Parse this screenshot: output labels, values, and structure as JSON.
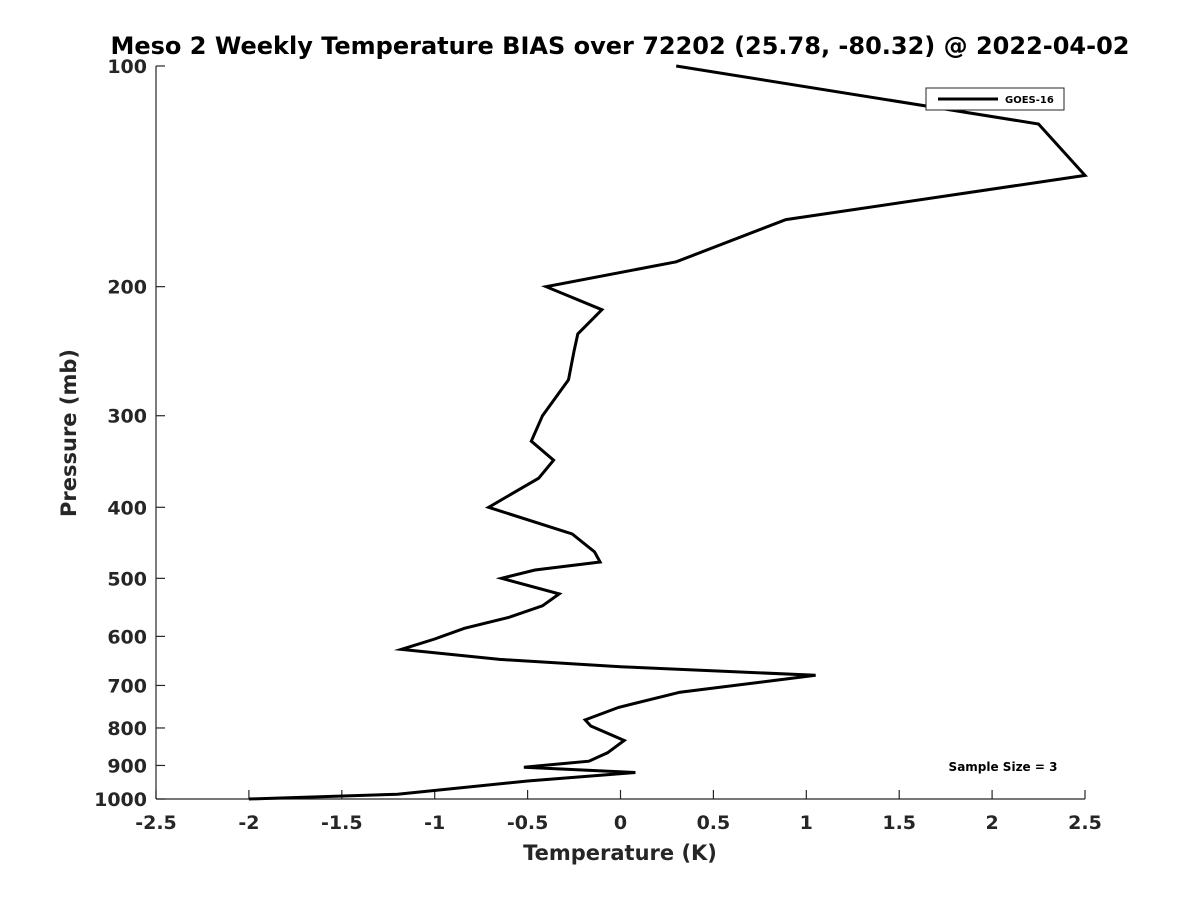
{
  "chart_data": {
    "type": "line",
    "title": "Meso 2 Weekly Temperature BIAS over 72202 (25.78, -80.32) @ 2022-04-02",
    "xlabel": "Temperature (K)",
    "ylabel": "Pressure (mb)",
    "xlim": [
      -2.5,
      2.5
    ],
    "ylim": [
      100,
      1000
    ],
    "y_scale": "log",
    "y_reversed": true,
    "x_ticks": [
      "-2.5",
      "-2",
      "-1.5",
      "-1",
      "-0.5",
      "0",
      "0.5",
      "1",
      "1.5",
      "2",
      "2.5"
    ],
    "y_ticks": [
      "100",
      "200",
      "300",
      "400",
      "500",
      "600",
      "700",
      "800",
      "900",
      "1000"
    ],
    "grid": false,
    "legend_position": "top-right",
    "annotation": "Sample Size = 3",
    "line_color": "#000000",
    "series": [
      {
        "name": "GOES-16",
        "points": [
          [
            0.3,
            100
          ],
          [
            2.25,
            120
          ],
          [
            2.5,
            141
          ],
          [
            0.89,
            162
          ],
          [
            0.3,
            185
          ],
          [
            -0.4,
            200
          ],
          [
            -0.1,
            215
          ],
          [
            -0.23,
            232
          ],
          [
            -0.25,
            245
          ],
          [
            -0.28,
            268
          ],
          [
            -0.42,
            300
          ],
          [
            -0.48,
            325
          ],
          [
            -0.36,
            345
          ],
          [
            -0.44,
            365
          ],
          [
            -0.71,
            400
          ],
          [
            -0.26,
            435
          ],
          [
            -0.14,
            460
          ],
          [
            -0.11,
            475
          ],
          [
            -0.46,
            487
          ],
          [
            -0.64,
            500
          ],
          [
            -0.33,
            525
          ],
          [
            -0.42,
            545
          ],
          [
            -0.6,
            565
          ],
          [
            -0.84,
            585
          ],
          [
            -1.0,
            605
          ],
          [
            -1.18,
            625
          ],
          [
            -0.65,
            645
          ],
          [
            0.0,
            660
          ],
          [
            1.05,
            678
          ],
          [
            0.81,
            690
          ],
          [
            0.32,
            715
          ],
          [
            -0.01,
            750
          ],
          [
            -0.19,
            780
          ],
          [
            -0.16,
            795
          ],
          [
            0.02,
            832
          ],
          [
            -0.07,
            865
          ],
          [
            -0.17,
            888
          ],
          [
            -0.52,
            905
          ],
          [
            0.08,
            920
          ],
          [
            -0.5,
            945
          ],
          [
            -1.2,
            985
          ],
          [
            -2.0,
            1000
          ]
        ]
      }
    ]
  }
}
